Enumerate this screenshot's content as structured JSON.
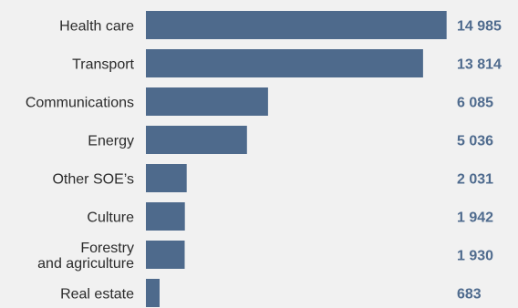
{
  "chart_data": {
    "type": "bar",
    "orientation": "horizontal",
    "categories": [
      [
        "Health care"
      ],
      [
        "Transport"
      ],
      [
        "Communications"
      ],
      [
        "Energy"
      ],
      [
        "Other SOE’s"
      ],
      [
        "Culture"
      ],
      [
        "Forestry",
        "and agriculture"
      ],
      [
        "Real estate"
      ]
    ],
    "values": [
      14985,
      13814,
      6085,
      5036,
      2031,
      1942,
      1930,
      683
    ],
    "value_labels": [
      "14 985",
      "13 814",
      "6 085",
      "5 036",
      "2 031",
      "1 942",
      "1 930",
      "683"
    ],
    "xlim": [
      0,
      15000
    ],
    "grid": false,
    "colors": {
      "bar": "#4e6a8c",
      "value_text": "#4f6b8e",
      "background": "#f1f1f1"
    }
  }
}
